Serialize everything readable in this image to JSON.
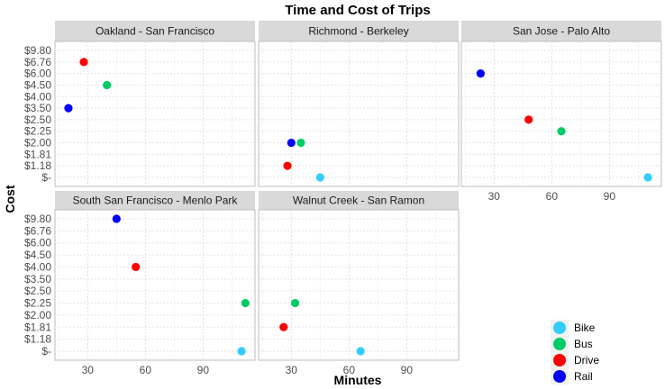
{
  "chart_data": {
    "type": "scatter",
    "title": "Time and Cost of Trips",
    "xlabel": "Minutes",
    "ylabel": "Cost",
    "xlim": [
      13,
      117
    ],
    "x_ticks": [
      30,
      60,
      90
    ],
    "y_tick_labels": [
      "$-",
      "$1.18",
      "$1.81",
      "$2.00",
      "$2.25",
      "$2.50",
      "$3.50",
      "$4.00",
      "$4.50",
      "$6.00",
      "$6.76",
      "$9.80"
    ],
    "y_axis_note": "discrete cost axis: labels are evenly spaced categories",
    "grid": true,
    "legend_position": "bottom-right",
    "legend": [
      {
        "name": "Bike",
        "color": "#33ccff"
      },
      {
        "name": "Bus",
        "color": "#00cc66"
      },
      {
        "name": "Drive",
        "color": "#ff0000"
      },
      {
        "name": "Rail",
        "color": "#0000ff"
      }
    ],
    "panels": [
      {
        "name": "Oakland - San Francisco",
        "points": [
          {
            "mode": "Drive",
            "minutes": 28,
            "cost": "$6.76"
          },
          {
            "mode": "Bus",
            "minutes": 40,
            "cost": "$4.50"
          },
          {
            "mode": "Rail",
            "minutes": 20,
            "cost": "$3.50"
          }
        ]
      },
      {
        "name": "Richmond - Berkeley",
        "points": [
          {
            "mode": "Rail",
            "minutes": 30,
            "cost": "$2.00"
          },
          {
            "mode": "Bus",
            "minutes": 35,
            "cost": "$2.00"
          },
          {
            "mode": "Drive",
            "minutes": 28,
            "cost": "$1.18"
          },
          {
            "mode": "Bike",
            "minutes": 45,
            "cost": "$-"
          }
        ]
      },
      {
        "name": "San Jose - Palo Alto",
        "points": [
          {
            "mode": "Rail",
            "minutes": 23,
            "cost": "$6.00"
          },
          {
            "mode": "Drive",
            "minutes": 48,
            "cost": "$2.50"
          },
          {
            "mode": "Bus",
            "minutes": 65,
            "cost": "$2.25"
          },
          {
            "mode": "Bike",
            "minutes": 110,
            "cost": "$-"
          }
        ]
      },
      {
        "name": "South San Francisco - Menlo Park",
        "points": [
          {
            "mode": "Rail",
            "minutes": 45,
            "cost": "$9.80"
          },
          {
            "mode": "Drive",
            "minutes": 55,
            "cost": "$4.00"
          },
          {
            "mode": "Bus",
            "minutes": 112,
            "cost": "$2.25"
          },
          {
            "mode": "Bike",
            "minutes": 110,
            "cost": "$-"
          }
        ]
      },
      {
        "name": "Walnut Creek - San Ramon",
        "points": [
          {
            "mode": "Bus",
            "minutes": 32,
            "cost": "$2.25"
          },
          {
            "mode": "Drive",
            "minutes": 26,
            "cost": "$1.81"
          },
          {
            "mode": "Bike",
            "minutes": 66,
            "cost": "$-"
          }
        ]
      }
    ]
  }
}
